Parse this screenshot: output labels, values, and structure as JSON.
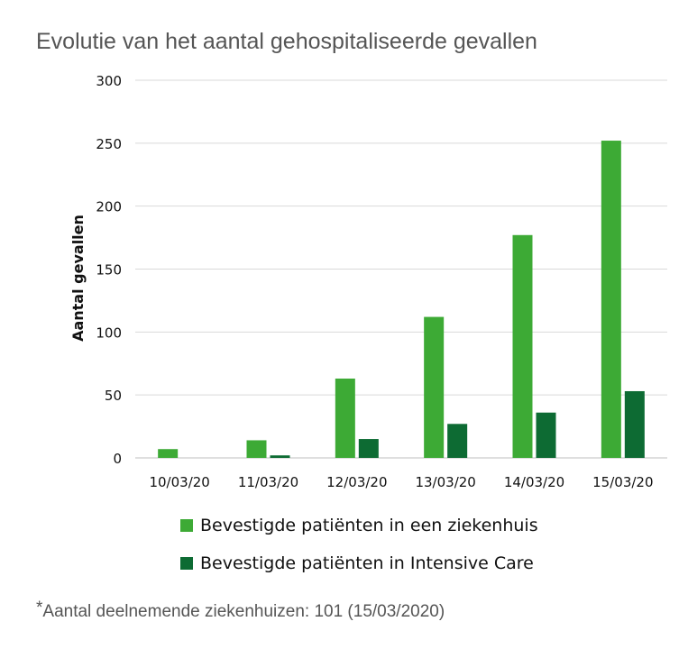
{
  "page": {
    "title": "Evolutie van het aantal gehospitaliseerde gevallen",
    "footnote_marker": "*",
    "footnote": "Aantal deelnemende ziekenhuizen: 101 (15/03/2020)"
  },
  "colors": {
    "hospital": "#3daa35",
    "icu": "#0d6b33",
    "grid": "#d9d9d9",
    "axis": "#bfbfbf"
  },
  "chart_data": {
    "type": "bar",
    "title": "Evolutie van het aantal gehospitaliseerde gevallen",
    "xlabel": "",
    "ylabel": "Aantal gevallen",
    "ylim": [
      0,
      300
    ],
    "yticks": [
      0,
      50,
      100,
      150,
      200,
      250,
      300
    ],
    "grid": true,
    "legend": "bottom",
    "categories": [
      "10/03/20",
      "11/03/20",
      "12/03/20",
      "13/03/20",
      "14/03/20",
      "15/03/20"
    ],
    "series": [
      {
        "name": "Bevestigde patiënten in een ziekenhuis",
        "color": "#3daa35",
        "values": [
          7,
          14,
          63,
          112,
          177,
          252
        ]
      },
      {
        "name": "Bevestigde patiënten in Intensive Care",
        "color": "#0d6b33",
        "values": [
          0,
          2,
          15,
          27,
          36,
          53
        ]
      }
    ]
  }
}
